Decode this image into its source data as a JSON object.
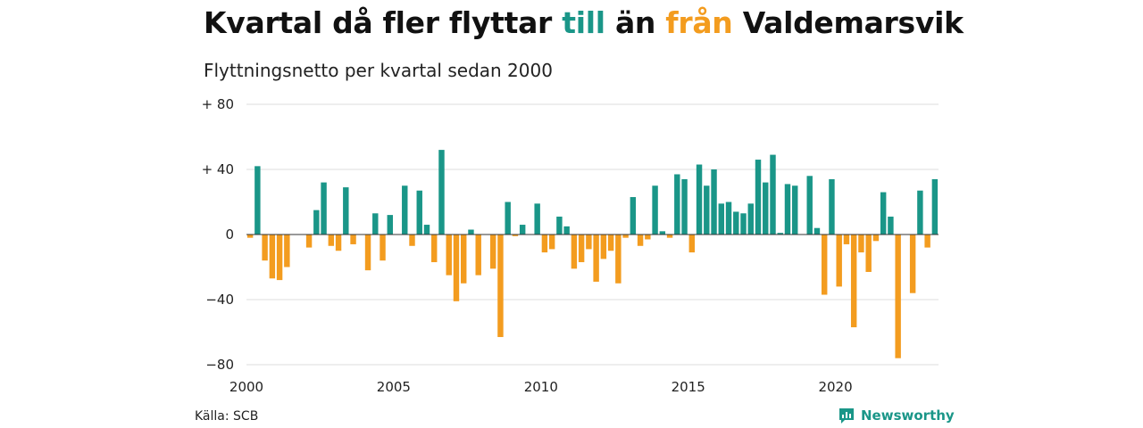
{
  "header": {
    "title_pre": "Kvartal då fler flyttar ",
    "title_in": "till",
    "title_mid": " än ",
    "title_out": "från",
    "title_post": " Valdemarsvik",
    "subtitle": "Flyttningsnetto per kvartal sedan 2000"
  },
  "footer": {
    "source": "Källa: SCB",
    "brand": "Newsworthy"
  },
  "colors": {
    "positive": "#1a9688",
    "negative": "#f39c1f",
    "grid": "#dddddd",
    "zero_line": "#333333"
  },
  "icons": {
    "brand": "newsworthy-chart-icon"
  },
  "chart_data": {
    "type": "bar",
    "title": "Kvartal då fler flyttar till än från Valdemarsvik",
    "subtitle": "Flyttningsnetto per kvartal sedan 2000",
    "xlabel": "",
    "ylabel": "",
    "ylim": [
      -80,
      80
    ],
    "yticks": [
      80,
      40,
      0,
      -40,
      -80
    ],
    "ytick_labels": [
      "+ 80",
      "+ 40",
      "0",
      "−40",
      "−80"
    ],
    "xticks": [
      2000,
      2005,
      2010,
      2015,
      2020
    ],
    "grid": true,
    "start_year": 2000,
    "quarters_per_year": 4,
    "values": [
      -2,
      42,
      -16,
      -27,
      -28,
      -20,
      0,
      0,
      -8,
      15,
      32,
      -7,
      -10,
      29,
      -6,
      0,
      -22,
      13,
      -16,
      12,
      0,
      30,
      -7,
      27,
      6,
      -17,
      52,
      -25,
      -41,
      -30,
      3,
      -25,
      0,
      -21,
      -63,
      20,
      -1,
      6,
      0,
      19,
      -11,
      -9,
      11,
      5,
      -21,
      -17,
      -9,
      -29,
      -15,
      -10,
      -30,
      -2,
      23,
      -7,
      -3,
      30,
      2,
      -2,
      37,
      34,
      -11,
      43,
      30,
      40,
      19,
      20,
      14,
      13,
      19,
      46,
      32,
      49,
      1,
      31,
      30,
      0,
      36,
      4,
      -37,
      34,
      -32,
      -6,
      -57,
      -11,
      -23,
      -4,
      26,
      11,
      -76,
      0,
      -36,
      27,
      -8,
      34
    ]
  }
}
